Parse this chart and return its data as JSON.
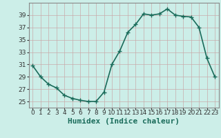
{
  "x": [
    0,
    1,
    2,
    3,
    4,
    5,
    6,
    7,
    8,
    9,
    10,
    11,
    12,
    13,
    14,
    15,
    16,
    17,
    18,
    19,
    20,
    21,
    22,
    23
  ],
  "y": [
    30.8,
    29.0,
    27.8,
    27.2,
    26.0,
    25.5,
    25.2,
    25.0,
    25.0,
    26.5,
    31.0,
    33.2,
    36.2,
    37.5,
    39.2,
    39.0,
    39.2,
    40.0,
    39.0,
    38.8,
    38.7,
    37.0,
    32.0,
    29.0
  ],
  "line_color": "#1a6b5a",
  "marker": "+",
  "marker_size": 4,
  "linewidth": 1.2,
  "background_color": "#cceee8",
  "grid_color": "#aaaaaa",
  "grid_linecolor": "#b8d8d0",
  "xlabel": "Humidex (Indice chaleur)",
  "xlabel_fontsize": 8,
  "tick_fontsize": 6.5,
  "xlim": [
    -0.5,
    23.5
  ],
  "ylim": [
    24,
    41
  ],
  "yticks": [
    25,
    27,
    29,
    31,
    33,
    35,
    37,
    39
  ],
  "xticks": [
    0,
    1,
    2,
    3,
    4,
    5,
    6,
    7,
    8,
    9,
    10,
    11,
    12,
    13,
    14,
    15,
    16,
    17,
    18,
    19,
    20,
    21,
    22,
    23
  ]
}
